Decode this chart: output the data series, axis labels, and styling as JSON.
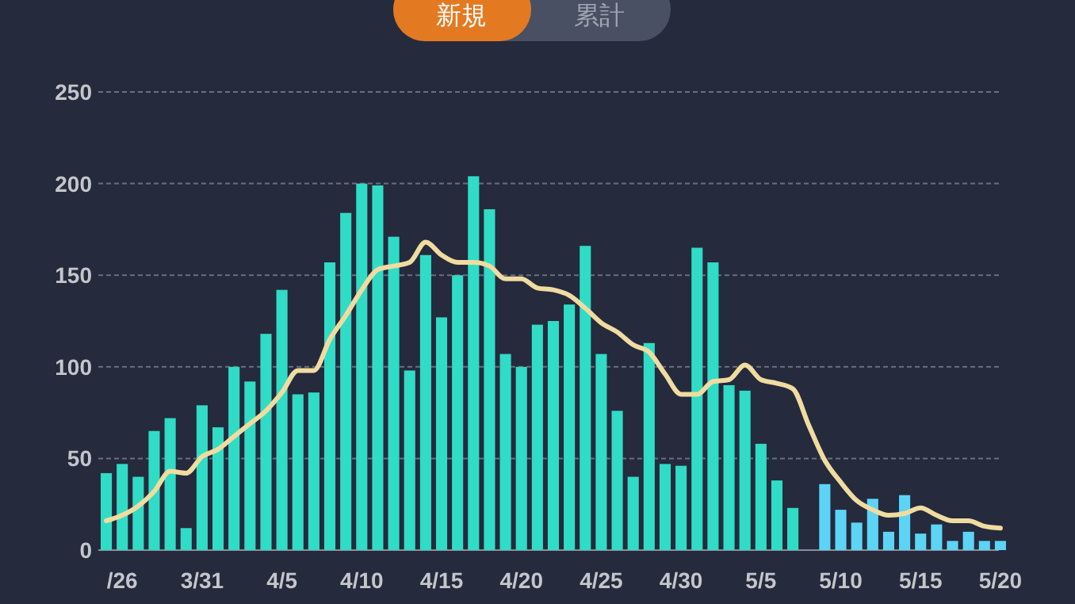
{
  "chart_data": {
    "type": "bar",
    "annotations": [
      "新規",
      "累計"
    ],
    "categories": [
      null,
      "/26",
      null,
      null,
      null,
      null,
      "3/31",
      null,
      null,
      null,
      null,
      "4/5",
      null,
      null,
      null,
      null,
      "4/10",
      null,
      null,
      null,
      null,
      "4/15",
      null,
      null,
      null,
      null,
      "4/20",
      null,
      null,
      null,
      null,
      "4/25",
      null,
      null,
      null,
      null,
      "4/30",
      null,
      null,
      null,
      null,
      "5/5",
      null,
      null,
      null,
      null,
      "5/10",
      null,
      null,
      null,
      null,
      "5/15",
      null,
      null,
      null,
      null,
      "5/20"
    ],
    "series": [
      {
        "color": "#30dcc6",
        "values": [
          42,
          47,
          40,
          65,
          72,
          12,
          79,
          67,
          100,
          92,
          118,
          142,
          85,
          86,
          157,
          184,
          200,
          199,
          171,
          98,
          161,
          127,
          150,
          204,
          186,
          107,
          100,
          123,
          125,
          134,
          166,
          107,
          76,
          40,
          113,
          47,
          46,
          165,
          157,
          90,
          87,
          58,
          38,
          23,
          null,
          null,
          null,
          null,
          null,
          null,
          null,
          null,
          null,
          null,
          null,
          null,
          null
        ]
      },
      {
        "color": "#5dd4f6",
        "values": [
          null,
          null,
          null,
          null,
          null,
          null,
          null,
          null,
          null,
          null,
          null,
          null,
          null,
          null,
          null,
          null,
          null,
          null,
          null,
          null,
          null,
          null,
          null,
          null,
          null,
          null,
          null,
          null,
          null,
          null,
          null,
          null,
          null,
          null,
          null,
          null,
          null,
          null,
          null,
          null,
          null,
          null,
          null,
          null,
          null,
          36,
          22,
          15,
          28,
          10,
          30,
          9,
          14,
          5,
          10,
          5,
          5
        ]
      },
      {
        "type": "line",
        "color": "#f0dca0",
        "values": [
          16,
          19,
          24,
          32,
          43,
          42,
          51,
          55,
          62,
          69,
          76,
          86,
          98,
          98,
          115,
          128,
          142,
          153,
          155,
          157,
          168,
          161,
          157,
          157,
          155,
          148,
          148,
          143,
          142,
          139,
          132,
          124,
          119,
          112,
          108,
          96,
          85,
          85,
          92,
          93,
          101,
          93,
          91,
          88,
          68,
          49,
          37,
          27,
          22,
          19,
          20,
          23,
          19,
          16,
          16,
          13,
          12
        ]
      }
    ],
    "ylim": [
      0,
      250
    ],
    "yticks": [
      0,
      50,
      100,
      150,
      200,
      250
    ],
    "grid": "y"
  }
}
